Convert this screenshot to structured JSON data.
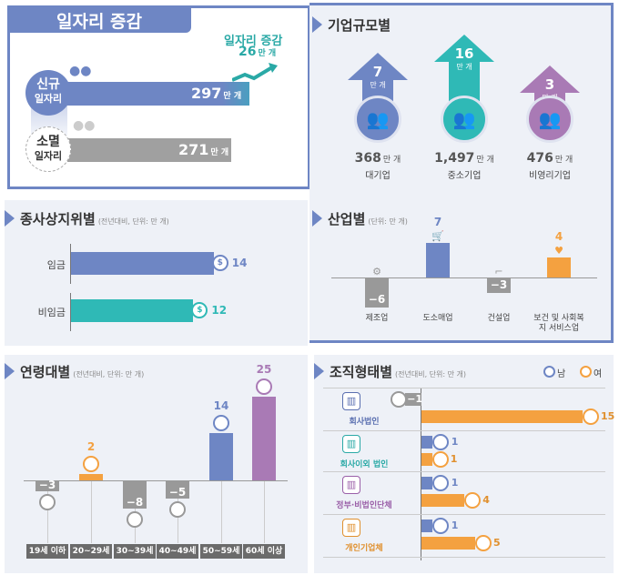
{
  "jobs": {
    "title": "일자리 증감",
    "new_label1": "신규",
    "new_label2": "일자리",
    "new_value": "297",
    "lost_label1": "소멸",
    "lost_label2": "일자리",
    "lost_value": "271",
    "unit": "만 개",
    "change_title": "일자리 증감",
    "change_value": "26",
    "change_unit": "만 개"
  },
  "size": {
    "title": "기업규모별",
    "items": [
      {
        "change": "7",
        "unit": "만 개",
        "total": "368",
        "total_unit": "만 개",
        "name": "대기업",
        "color": "#6e86c4"
      },
      {
        "change": "16",
        "unit": "만 개",
        "total": "1,497",
        "total_unit": "만 개",
        "name": "중소기업",
        "color": "#2fb9b6"
      },
      {
        "change": "3",
        "unit": "만 개",
        "total": "476",
        "total_unit": "만 개",
        "name": "비영리기업",
        "color": "#a97ab5"
      }
    ]
  },
  "status": {
    "title": "종사상지위별",
    "note": "(전년대비, 단위: 만 개)",
    "items": [
      {
        "label": "임금",
        "value": 14,
        "text": "14",
        "color": "#6e86c4"
      },
      {
        "label": "비임금",
        "value": 12,
        "text": "12",
        "color": "#2fb9b6"
      }
    ]
  },
  "industry": {
    "title": "산업별",
    "note": "(단위: 만 개)",
    "items": [
      {
        "label": "제조업",
        "value": -6,
        "text": "−6",
        "color": "#999999"
      },
      {
        "label": "도소매업",
        "value": 7,
        "text": "7",
        "color": "#6e86c4"
      },
      {
        "label": "건설업",
        "value": -3,
        "text": "−3",
        "color": "#999999"
      },
      {
        "label": "보건 및 사회복지 서비스업",
        "value": 4,
        "text": "4",
        "color": "#f4a140"
      }
    ]
  },
  "age": {
    "title": "연령대별",
    "note": "(전년대비, 단위: 만 개)",
    "items": [
      {
        "label": "19세 이하",
        "value": -3,
        "text": "−3",
        "color": "#999999"
      },
      {
        "label": "20~29세",
        "value": 2,
        "text": "2",
        "color": "#f4a140"
      },
      {
        "label": "30~39세",
        "value": -8,
        "text": "−8",
        "color": "#999999"
      },
      {
        "label": "40~49세",
        "value": -5,
        "text": "−5",
        "color": "#999999"
      },
      {
        "label": "50~59세",
        "value": 14,
        "text": "14",
        "color": "#6e86c4"
      },
      {
        "label": "60세 이상",
        "value": 25,
        "text": "25",
        "color": "#a97ab5"
      }
    ]
  },
  "org": {
    "title": "조직형태별",
    "note": "(전년대비, 단위: 만 개)",
    "legend_male": "남",
    "legend_female": "여",
    "male_color": "#6e86c4",
    "female_color": "#f4a140",
    "items": [
      {
        "label": "회사법인",
        "male": -1,
        "female": 15,
        "male_text": "−1",
        "female_text": "15",
        "color": "#5a6fb0"
      },
      {
        "label": "회사이외 법인",
        "male": 1,
        "female": 1,
        "male_text": "1",
        "female_text": "1",
        "color": "#2aa9a6"
      },
      {
        "label": "정부·비법인단체",
        "male": 1,
        "female": 4,
        "male_text": "1",
        "female_text": "4",
        "color": "#9a5fa8"
      },
      {
        "label": "개인기업체",
        "male": 1,
        "female": 5,
        "male_text": "1",
        "female_text": "5",
        "color": "#e0902e"
      }
    ]
  }
}
